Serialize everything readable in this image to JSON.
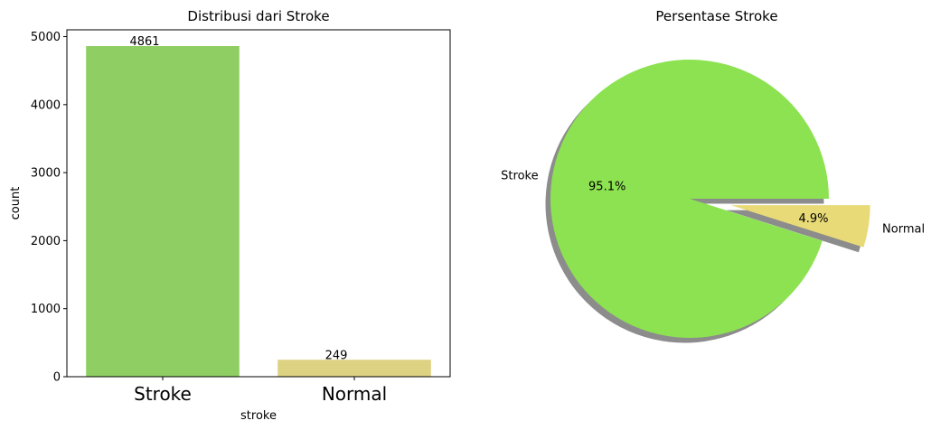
{
  "chart_data": [
    {
      "type": "bar",
      "title": "Distribusi dari Stroke",
      "xlabel": "stroke",
      "ylabel": "count",
      "categories": [
        "Stroke",
        "Normal"
      ],
      "values": [
        4861,
        249
      ],
      "value_labels": [
        "4861",
        "249"
      ],
      "ylim": [
        0,
        5100
      ],
      "yticks": [
        0,
        1000,
        2000,
        3000,
        4000,
        5000
      ],
      "ytick_labels": [
        "0",
        "1000",
        "2000",
        "3000",
        "4000",
        "5000"
      ],
      "colors": [
        "#8fce62",
        "#ddd182"
      ],
      "grid": false,
      "legend": false
    },
    {
      "type": "pie",
      "title": "Persentase Stroke",
      "labels": [
        "Stroke",
        "Normal"
      ],
      "values": [
        95.1,
        4.9
      ],
      "value_labels": [
        "95.1%",
        "4.9%"
      ],
      "colors": [
        "#8ce250",
        "#e9da78"
      ],
      "explode": [
        0,
        0.3
      ],
      "shadow": true,
      "legend": false
    }
  ]
}
